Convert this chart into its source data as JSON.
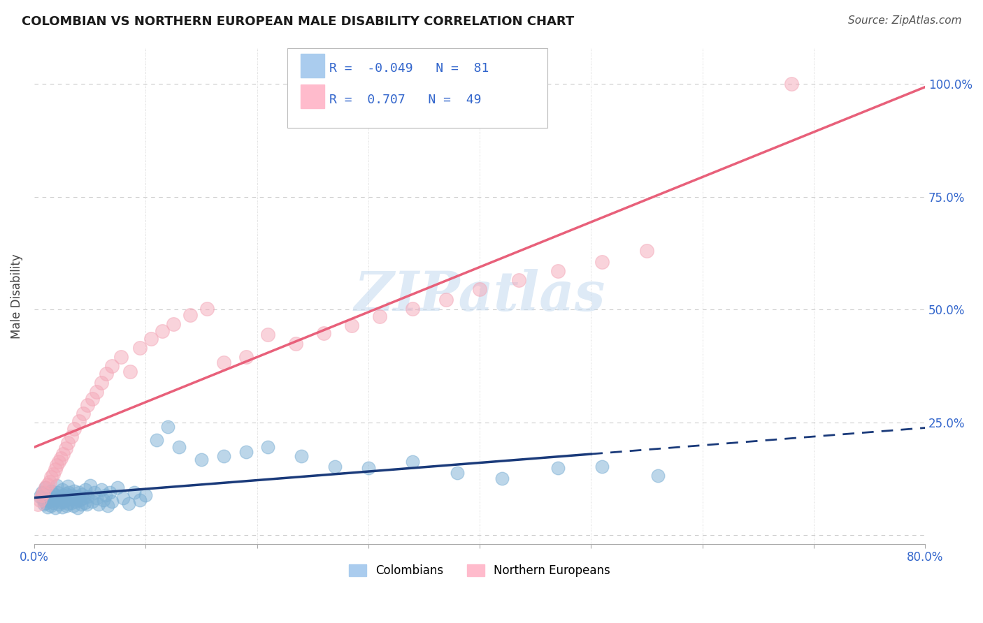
{
  "title": "COLOMBIAN VS NORTHERN EUROPEAN MALE DISABILITY CORRELATION CHART",
  "source": "Source: ZipAtlas.com",
  "ylabel": "Male Disability",
  "xmin": 0.0,
  "xmax": 0.8,
  "ymin": -0.02,
  "ymax": 1.08,
  "colombians_R": -0.049,
  "colombians_N": 81,
  "northern_europeans_R": 0.707,
  "northern_europeans_N": 49,
  "blue_color": "#7BAFD4",
  "pink_color": "#F4A8B8",
  "blue_line_color": "#1A3A7A",
  "pink_line_color": "#E8607A",
  "background_color": "#FFFFFF",
  "grid_color": "#CCCCCC",
  "colombians_x": [
    0.005,
    0.007,
    0.008,
    0.009,
    0.01,
    0.01,
    0.011,
    0.012,
    0.013,
    0.014,
    0.015,
    0.015,
    0.016,
    0.017,
    0.018,
    0.019,
    0.02,
    0.02,
    0.021,
    0.022,
    0.023,
    0.024,
    0.025,
    0.025,
    0.026,
    0.027,
    0.028,
    0.029,
    0.03,
    0.03,
    0.031,
    0.032,
    0.033,
    0.034,
    0.035,
    0.036,
    0.037,
    0.038,
    0.039,
    0.04,
    0.041,
    0.042,
    0.043,
    0.044,
    0.045,
    0.046,
    0.047,
    0.048,
    0.05,
    0.052,
    0.054,
    0.056,
    0.058,
    0.06,
    0.062,
    0.064,
    0.066,
    0.068,
    0.07,
    0.075,
    0.08,
    0.085,
    0.09,
    0.095,
    0.1,
    0.11,
    0.12,
    0.13,
    0.15,
    0.17,
    0.19,
    0.21,
    0.24,
    0.27,
    0.3,
    0.34,
    0.38,
    0.42,
    0.47,
    0.51,
    0.56
  ],
  "colombians_y": [
    0.085,
    0.095,
    0.078,
    0.068,
    0.105,
    0.072,
    0.088,
    0.062,
    0.092,
    0.075,
    0.098,
    0.065,
    0.082,
    0.071,
    0.09,
    0.06,
    0.11,
    0.078,
    0.095,
    0.068,
    0.085,
    0.073,
    0.1,
    0.062,
    0.088,
    0.075,
    0.092,
    0.065,
    0.108,
    0.07,
    0.095,
    0.08,
    0.072,
    0.088,
    0.065,
    0.098,
    0.075,
    0.085,
    0.06,
    0.095,
    0.078,
    0.068,
    0.09,
    0.082,
    0.072,
    0.1,
    0.068,
    0.085,
    0.11,
    0.075,
    0.095,
    0.082,
    0.068,
    0.1,
    0.078,
    0.088,
    0.065,
    0.095,
    0.075,
    0.105,
    0.082,
    0.07,
    0.095,
    0.078,
    0.088,
    0.21,
    0.24,
    0.195,
    0.168,
    0.175,
    0.185,
    0.195,
    0.175,
    0.152,
    0.148,
    0.162,
    0.138,
    0.125,
    0.148,
    0.152,
    0.132
  ],
  "northern_europeans_x": [
    0.003,
    0.005,
    0.007,
    0.008,
    0.01,
    0.012,
    0.014,
    0.015,
    0.017,
    0.019,
    0.02,
    0.022,
    0.024,
    0.026,
    0.028,
    0.03,
    0.033,
    0.036,
    0.04,
    0.044,
    0.048,
    0.052,
    0.056,
    0.06,
    0.065,
    0.07,
    0.078,
    0.086,
    0.095,
    0.105,
    0.115,
    0.125,
    0.14,
    0.155,
    0.17,
    0.19,
    0.21,
    0.235,
    0.26,
    0.285,
    0.31,
    0.34,
    0.37,
    0.4,
    0.435,
    0.47,
    0.51,
    0.55,
    0.68
  ],
  "northern_europeans_y": [
    0.068,
    0.078,
    0.088,
    0.095,
    0.105,
    0.112,
    0.118,
    0.128,
    0.135,
    0.145,
    0.155,
    0.162,
    0.17,
    0.18,
    0.192,
    0.205,
    0.218,
    0.235,
    0.252,
    0.27,
    0.288,
    0.302,
    0.318,
    0.338,
    0.358,
    0.375,
    0.395,
    0.362,
    0.415,
    0.435,
    0.452,
    0.468,
    0.488,
    0.502,
    0.382,
    0.395,
    0.445,
    0.425,
    0.448,
    0.465,
    0.485,
    0.502,
    0.522,
    0.545,
    0.565,
    0.585,
    0.605,
    0.63,
    1.0
  ]
}
